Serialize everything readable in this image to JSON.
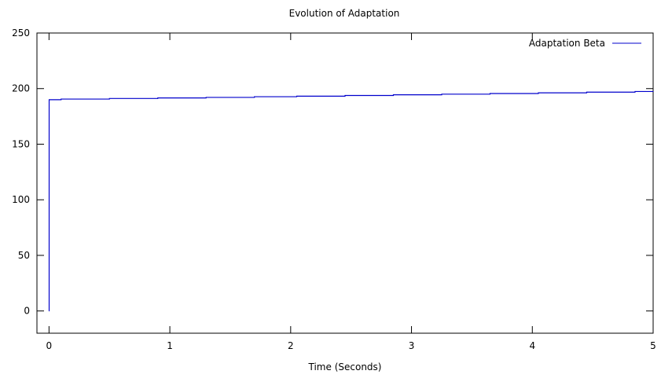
{
  "chart_data": {
    "type": "line",
    "title": "Evolution of Adaptation",
    "xlabel": "Time (Seconds)",
    "ylabel": "",
    "xlim": [
      -0.1,
      5
    ],
    "ylim": [
      -20,
      250
    ],
    "x_ticks": [
      0,
      1,
      2,
      3,
      4,
      5
    ],
    "y_ticks": [
      0,
      50,
      100,
      150,
      200,
      250
    ],
    "grid": false,
    "legend_position": "top-right",
    "series": [
      {
        "name": "Adaptation Beta",
        "color": "#0000cc",
        "step": true,
        "x": [
          0,
          0.001,
          0.1,
          0.5,
          0.9,
          1.3,
          1.7,
          2.05,
          2.45,
          2.85,
          3.25,
          3.65,
          4.05,
          4.45,
          4.85,
          5
        ],
        "y": [
          0,
          190,
          190.6,
          191.1,
          191.6,
          192.1,
          192.7,
          193.2,
          193.8,
          194.4,
          195,
          195.6,
          196.2,
          196.8,
          197.4,
          197.6
        ]
      }
    ]
  }
}
